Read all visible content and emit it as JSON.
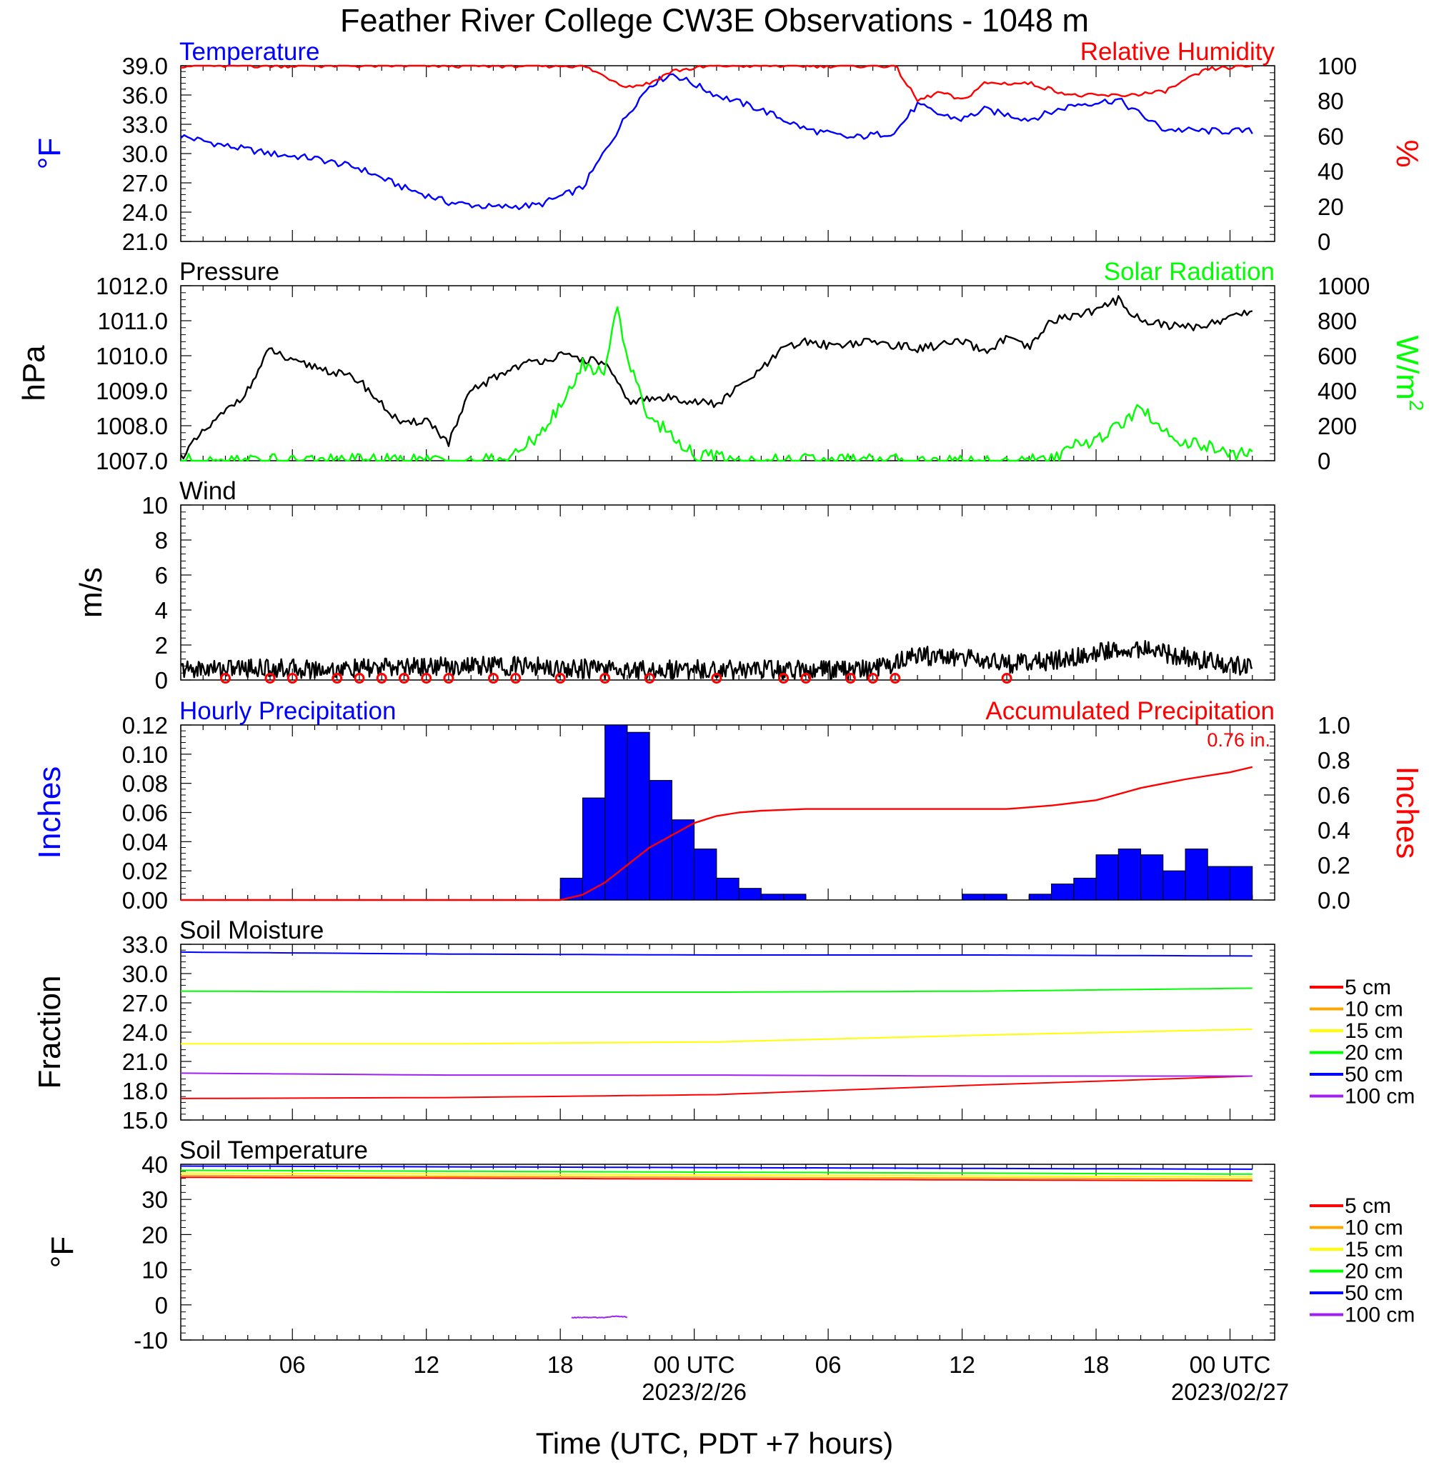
{
  "page": {
    "title": "Feather River College CW3E Observations - 1048 m",
    "xlabel": "Time (UTC, PDT +7 hours)",
    "time_ticks": [
      "06",
      "12",
      "18",
      "00 UTC",
      "06",
      "12",
      "18",
      "00 UTC"
    ],
    "date_labels": [
      "2023/2/26",
      "2023/02/27"
    ]
  },
  "chart_data": [
    {
      "id": "temp_rh",
      "type": "line",
      "title_left": "Temperature",
      "title_right": "Relative Humidity",
      "ylabel_left": "°F",
      "ylabel_right": "%",
      "ylim_left": [
        21.0,
        39.0
      ],
      "ylim_right": [
        0,
        100
      ],
      "yticks_left": [
        "21.0",
        "24.0",
        "27.0",
        "30.0",
        "33.0",
        "36.0",
        "39.0"
      ],
      "yticks_right": [
        "0",
        "20",
        "40",
        "60",
        "80",
        "100"
      ],
      "x_hours": [
        1,
        3,
        5,
        7,
        9,
        11,
        13,
        15,
        17,
        19,
        21,
        22,
        23,
        25,
        27,
        29,
        31,
        33,
        34,
        35,
        36,
        37,
        39,
        41,
        43,
        45,
        47,
        49
      ],
      "series": [
        {
          "name": "Temperature",
          "axis": "left",
          "color": "#0000ff",
          "values": [
            31.8,
            30.8,
            30.0,
            29.5,
            28.5,
            26.5,
            25.0,
            24.5,
            24.7,
            26.5,
            34.0,
            37.0,
            38.2,
            36.0,
            34.5,
            32.5,
            31.6,
            32.2,
            35.0,
            34.0,
            33.5,
            34.5,
            33.5,
            35.0,
            35.5,
            32.5,
            32.3,
            32.3
          ]
        },
        {
          "name": "Relative Humidity",
          "axis": "right",
          "color": "#ff0000",
          "values": [
            100,
            100,
            100,
            100,
            100,
            100,
            100,
            100,
            100,
            100,
            88,
            90,
            97,
            100,
            100,
            100,
            100,
            100,
            80,
            85,
            80,
            90,
            90,
            83,
            83,
            85,
            98,
            100
          ]
        }
      ]
    },
    {
      "id": "pressure_solar",
      "type": "line",
      "title_left": "Pressure",
      "title_right": "Solar Radiation",
      "ylabel_left": "hPa",
      "ylabel_right": "W/m",
      "ylabel_right_sup": "2",
      "ylim_left": [
        1007.0,
        1012.0
      ],
      "ylim_right": [
        0,
        1000
      ],
      "yticks_left": [
        "1007.0",
        "1008.0",
        "1009.0",
        "1010.0",
        "1011.0",
        "1012.0"
      ],
      "yticks_right": [
        "0",
        "200",
        "400",
        "600",
        "800",
        "1000"
      ],
      "series": [
        {
          "name": "Pressure",
          "axis": "left",
          "color": "#000000",
          "x": [
            1,
            2,
            4,
            5,
            6,
            7,
            9,
            10,
            11,
            12,
            13,
            14,
            16,
            18,
            20,
            21,
            23,
            25,
            27,
            28,
            29,
            30,
            32,
            34,
            36,
            37,
            38,
            39,
            40,
            42,
            43,
            44,
            46,
            47,
            48,
            49
          ],
          "values": [
            1007.1,
            1007.8,
            1009.0,
            1010.2,
            1009.8,
            1009.7,
            1009.3,
            1008.6,
            1008.0,
            1008.2,
            1007.5,
            1009.0,
            1009.7,
            1010.0,
            1009.8,
            1008.7,
            1008.8,
            1008.6,
            1009.6,
            1010.2,
            1010.4,
            1010.3,
            1010.4,
            1010.2,
            1010.4,
            1010.1,
            1010.5,
            1010.2,
            1011.0,
            1011.3,
            1011.6,
            1011.0,
            1010.8,
            1010.9,
            1011.1,
            1011.3
          ]
        },
        {
          "name": "Solar Radiation",
          "axis": "right",
          "color": "#00ff00",
          "x": [
            1,
            15,
            16,
            17,
            18,
            19,
            20,
            20.5,
            21,
            21.5,
            22,
            23,
            24,
            25,
            26,
            40,
            41,
            42,
            43,
            44,
            45,
            46,
            47,
            48,
            49
          ],
          "values": [
            0,
            0,
            30,
            150,
            300,
            550,
            500,
            900,
            600,
            400,
            250,
            150,
            30,
            20,
            0,
            0,
            80,
            120,
            200,
            300,
            180,
            100,
            80,
            40,
            30
          ]
        }
      ]
    },
    {
      "id": "wind",
      "type": "line",
      "title_left": "Wind",
      "ylabel_left": "m/s",
      "ylim_left": [
        0,
        10
      ],
      "yticks_left": [
        "0",
        "2",
        "4",
        "6",
        "8",
        "10"
      ],
      "series": [
        {
          "name": "Wind",
          "axis": "left",
          "color": "#000000",
          "x": [
            1,
            4,
            8,
            12,
            16,
            20,
            24,
            28,
            32,
            34,
            36,
            38,
            40,
            42,
            44,
            46,
            48,
            49
          ],
          "values": [
            0.6,
            0.7,
            0.6,
            0.8,
            0.8,
            0.6,
            0.6,
            0.6,
            0.6,
            1.4,
            1.3,
            0.9,
            1.1,
            1.6,
            1.8,
            1.3,
            0.9,
            0.6
          ]
        }
      ],
      "calm_hours": [
        3,
        5,
        6,
        8,
        9,
        10,
        11,
        12,
        13,
        15,
        16,
        18,
        20,
        22,
        25,
        28,
        29,
        31,
        32,
        33,
        38
      ]
    },
    {
      "id": "precip",
      "type": "bar",
      "title_left": "Hourly Precipitation",
      "title_right": "Accumulated Precipitation",
      "annotation": "0.76 in.",
      "ylabel_left": "Inches",
      "ylabel_right": "Inches",
      "ylim_left": [
        0,
        0.12
      ],
      "ylim_right": [
        0,
        1.0
      ],
      "yticks_left": [
        "0.00",
        "0.02",
        "0.04",
        "0.06",
        "0.08",
        "0.10",
        "0.12"
      ],
      "yticks_right": [
        "0.0",
        "0.2",
        "0.4",
        "0.6",
        "0.8",
        "1.0"
      ],
      "bars": {
        "start_hours": [
          18,
          19,
          20,
          21,
          22,
          23,
          24,
          25,
          26,
          27,
          28,
          36,
          37,
          39,
          40,
          41,
          42,
          43,
          44,
          45,
          46,
          47,
          48
        ],
        "values": [
          0.015,
          0.07,
          0.12,
          0.115,
          0.082,
          0.055,
          0.035,
          0.015,
          0.008,
          0.004,
          0.004,
          0.004,
          0.004,
          0.004,
          0.011,
          0.015,
          0.031,
          0.035,
          0.031,
          0.02,
          0.035,
          0.023,
          0.023
        ],
        "color": "#0000ff"
      },
      "series": [
        {
          "name": "Accumulated Precipitation",
          "axis": "right",
          "color": "#ff0000",
          "x": [
            1,
            18,
            19,
            20,
            21,
            22,
            23,
            24,
            25,
            26,
            27,
            29,
            38,
            40,
            42,
            44,
            46,
            48,
            49
          ],
          "values": [
            0,
            0,
            0.03,
            0.1,
            0.2,
            0.3,
            0.37,
            0.44,
            0.48,
            0.5,
            0.51,
            0.52,
            0.52,
            0.54,
            0.57,
            0.64,
            0.69,
            0.73,
            0.76
          ]
        }
      ]
    },
    {
      "id": "soil_moisture",
      "type": "line",
      "title_left": "Soil Moisture",
      "ylabel_left": "Fraction",
      "ylim_left": [
        15.0,
        33.0
      ],
      "yticks_left": [
        "15.0",
        "18.0",
        "21.0",
        "24.0",
        "27.0",
        "30.0",
        "33.0"
      ],
      "legend": [
        "5 cm",
        "10 cm",
        "15 cm",
        "20 cm",
        "50 cm",
        "100 cm"
      ],
      "legend_colors": [
        "#ff0000",
        "#ffa500",
        "#ffff00",
        "#00ff00",
        "#0000ff",
        "#a020f0"
      ],
      "x": [
        1,
        13,
        25,
        37,
        49
      ],
      "series": [
        {
          "name": "5 cm",
          "color": "#ff0000",
          "values": [
            17.2,
            17.3,
            17.6,
            18.6,
            19.5
          ]
        },
        {
          "name": "15 cm",
          "color": "#ffff00",
          "values": [
            22.8,
            22.8,
            23.0,
            23.7,
            24.3
          ]
        },
        {
          "name": "20 cm",
          "color": "#00ff00",
          "values": [
            28.2,
            28.1,
            28.1,
            28.2,
            28.5
          ]
        },
        {
          "name": "50 cm",
          "color": "#0000ff",
          "values": [
            32.2,
            32.0,
            31.9,
            31.9,
            31.8
          ]
        },
        {
          "name": "100 cm",
          "color": "#a020f0",
          "values": [
            19.8,
            19.6,
            19.6,
            19.5,
            19.5
          ]
        }
      ]
    },
    {
      "id": "soil_temp",
      "type": "line",
      "title_left": "Soil Temperature",
      "ylabel_left": "°F",
      "ylim_left": [
        -10,
        40
      ],
      "yticks_left": [
        "-10",
        "0",
        "10",
        "20",
        "30",
        "40"
      ],
      "legend": [
        "5 cm",
        "10 cm",
        "15 cm",
        "20 cm",
        "50 cm",
        "100 cm"
      ],
      "legend_colors": [
        "#ff0000",
        "#ffa500",
        "#ffff00",
        "#00ff00",
        "#0000ff",
        "#a020f0"
      ],
      "series": [
        {
          "name": "5 cm",
          "color": "#ff0000",
          "x": [
            1,
            49
          ],
          "values": [
            36.3,
            35.3
          ]
        },
        {
          "name": "10 cm",
          "color": "#ffa500",
          "x": [
            1,
            49
          ],
          "values": [
            36.8,
            35.8
          ]
        },
        {
          "name": "15 cm",
          "color": "#ffff00",
          "x": [
            1,
            49
          ],
          "values": [
            37.5,
            36.4
          ]
        },
        {
          "name": "20 cm",
          "color": "#00ff00",
          "x": [
            1,
            49
          ],
          "values": [
            38.3,
            37.2
          ]
        },
        {
          "name": "50 cm",
          "color": "#0000ff",
          "x": [
            1,
            49
          ],
          "values": [
            39.5,
            38.6
          ]
        },
        {
          "name": "100 cm",
          "color": "#a020f0",
          "x": [
            18.5,
            20,
            20.5,
            21
          ],
          "values": [
            -3.6,
            -3.6,
            -3.2,
            -3.5
          ]
        }
      ]
    }
  ]
}
